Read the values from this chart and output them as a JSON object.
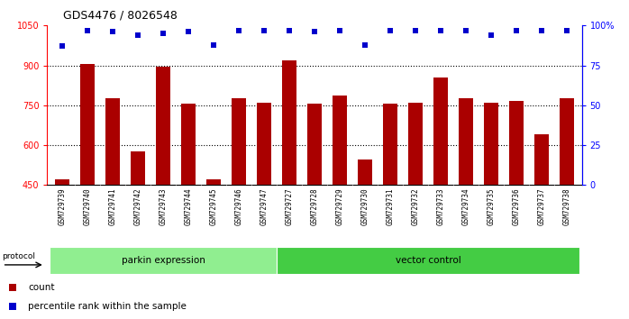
{
  "title": "GDS4476 / 8026548",
  "samples": [
    "GSM729739",
    "GSM729740",
    "GSM729741",
    "GSM729742",
    "GSM729743",
    "GSM729744",
    "GSM729745",
    "GSM729746",
    "GSM729747",
    "GSM729727",
    "GSM729728",
    "GSM729729",
    "GSM729730",
    "GSM729731",
    "GSM729732",
    "GSM729733",
    "GSM729734",
    "GSM729735",
    "GSM729736",
    "GSM729737",
    "GSM729738"
  ],
  "counts": [
    470,
    905,
    775,
    575,
    895,
    755,
    470,
    775,
    760,
    920,
    755,
    785,
    545,
    755,
    760,
    855,
    775,
    760,
    765,
    640,
    775
  ],
  "percentile": [
    87,
    97,
    96,
    94,
    95,
    96,
    88,
    97,
    97,
    97,
    96,
    97,
    88,
    97,
    97,
    97,
    97,
    94,
    97,
    97,
    97
  ],
  "groups": [
    {
      "label": "parkin expression",
      "start": 0,
      "end": 9,
      "color": "#90EE90"
    },
    {
      "label": "vector control",
      "start": 9,
      "end": 21,
      "color": "#44CC44"
    }
  ],
  "ylim_left": [
    450,
    1050
  ],
  "yticks_left": [
    450,
    600,
    750,
    900,
    1050
  ],
  "ylim_right": [
    0,
    100
  ],
  "yticks_right": [
    0,
    25,
    50,
    75,
    100
  ],
  "grid_lines": [
    600,
    750,
    900
  ],
  "bar_color": "#AA0000",
  "dot_color": "#0000CC",
  "bg_color": "#FFFFFF",
  "tickarea_bg": "#C8C8C8",
  "tick_label_fontsize": 5.5,
  "title_fontsize": 9,
  "parkin_count": 9,
  "total_count": 21
}
